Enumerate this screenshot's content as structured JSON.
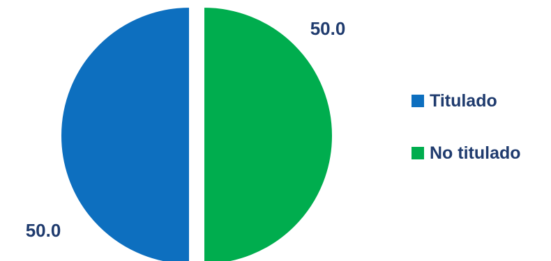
{
  "chart_data": {
    "type": "pie",
    "categories": [
      "Titulado",
      "No titulado"
    ],
    "values": [
      50.0,
      50.0
    ],
    "data_labels": [
      "50.0",
      "50.0"
    ],
    "colors": [
      "#0d6fbf",
      "#00ad4e"
    ],
    "exploded": true,
    "legend_position": "right"
  }
}
